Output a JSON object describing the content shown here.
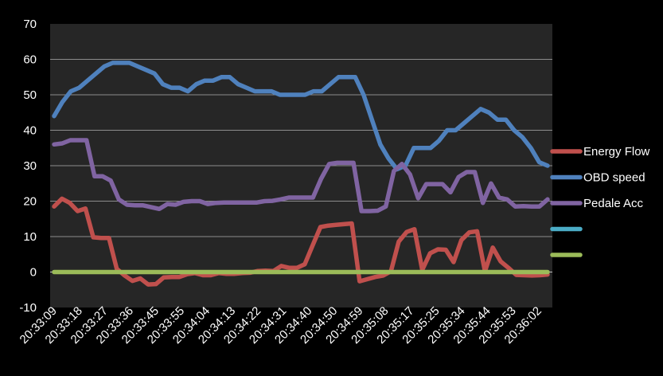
{
  "chart_data": {
    "type": "line",
    "title": "",
    "xlabel": "",
    "ylabel": "",
    "ylim": [
      -10,
      70
    ],
    "y_ticks": [
      "70",
      "60",
      "50",
      "40",
      "30",
      "20",
      "10",
      "0",
      "-10"
    ],
    "x_tick_labels": [
      "20:33:09",
      "20:33:18",
      "20:33:27",
      "20:33:36",
      "20:33:45",
      "20:33:55",
      "20:34:04",
      "20:34:13",
      "20:34:22",
      "20:34:31",
      "20:34:40",
      "20:34:50",
      "20:34:59",
      "20:35:08",
      "20:35:17",
      "20:35:25",
      "20:35:34",
      "20:35:44",
      "20:35:53",
      "20:36:02"
    ],
    "grid": true,
    "legend_position": "right",
    "series": [
      {
        "name": "Energy Flow",
        "color": "#c0504d",
        "values": [
          18.5,
          20.7,
          19.5,
          17.2,
          17.9,
          9.8,
          9.6,
          9.6,
          0.9,
          -1,
          -2.5,
          -1.8,
          -3.5,
          -3.4,
          -1.5,
          -1.4,
          -1.4,
          -0.6,
          -0.3,
          -0.9,
          -0.9,
          -0.3,
          -0.5,
          -0.5,
          -0.3,
          -0.2,
          0.3,
          0.4,
          0.3,
          1.7,
          1.2,
          1.2,
          2.2,
          7.5,
          12.7,
          13.1,
          13.3,
          13.5,
          13.7,
          -2.6,
          -2,
          -1.4,
          -1,
          0.2,
          8.6,
          11.3,
          12.1,
          0.6,
          5.3,
          6.4,
          6.3,
          2.8,
          9,
          11.2,
          11.5,
          0.2,
          6.9,
          3,
          1.2,
          -0.8,
          -0.9,
          -1,
          -0.9,
          -0.7
        ]
      },
      {
        "name": "OBD speed",
        "color": "#4f81bd",
        "values": [
          44,
          48,
          51,
          52,
          54,
          56,
          58,
          59,
          59,
          59,
          58,
          57,
          56,
          53,
          52,
          52,
          51,
          53,
          54,
          54,
          55,
          55,
          53,
          52,
          51,
          51,
          51,
          50,
          50,
          50,
          50,
          51,
          51,
          53,
          55,
          55,
          55,
          50,
          43,
          36,
          32,
          29,
          30,
          35,
          35,
          35,
          37,
          40,
          40,
          42,
          44,
          46,
          45,
          43,
          43,
          40,
          38,
          35,
          31,
          30
        ]
      },
      {
        "name": "Pedale Acc",
        "color": "#8064a2",
        "values": [
          36,
          36.3,
          37.2,
          37.2,
          37.2,
          27,
          27,
          25.8,
          20.5,
          19,
          18.8,
          18.8,
          18.3,
          17.8,
          19.2,
          19,
          19.8,
          20,
          20,
          19.2,
          19.5,
          19.6,
          19.6,
          19.6,
          19.6,
          19.6,
          20,
          20.1,
          20.5,
          21,
          21,
          21,
          21,
          26.3,
          30.5,
          30.8,
          30.8,
          30.8,
          17.2,
          17.2,
          17.3,
          18.5,
          28.5,
          30.5,
          27.5,
          20.8,
          24.8,
          24.8,
          24.8,
          22.5,
          26.8,
          28.2,
          28.2,
          19.5,
          25,
          21,
          20.5,
          18.5,
          18.6,
          18.5,
          18.5,
          20.5
        ]
      },
      {
        "name": "",
        "color": "#4bacc6",
        "values": []
      },
      {
        "name": "",
        "color": "#9bbb59",
        "values": [
          0,
          0,
          0,
          0,
          0,
          0,
          0,
          0,
          0,
          0,
          0,
          0,
          0,
          0,
          0,
          0,
          0,
          0,
          0,
          0,
          0,
          0,
          0,
          0,
          0,
          0,
          0,
          0,
          0,
          0,
          0,
          0,
          0,
          0,
          0,
          0,
          0,
          0,
          0,
          0,
          0,
          0,
          0,
          0,
          0,
          0,
          0,
          0,
          0,
          0,
          0,
          0,
          0,
          0,
          0,
          0,
          0,
          0,
          0,
          0,
          0,
          0,
          0,
          0
        ]
      }
    ]
  },
  "colors": {
    "background": "#000000",
    "plot_area": "#262626",
    "gridline": "#8c8c8c",
    "text": "#ffffff"
  }
}
